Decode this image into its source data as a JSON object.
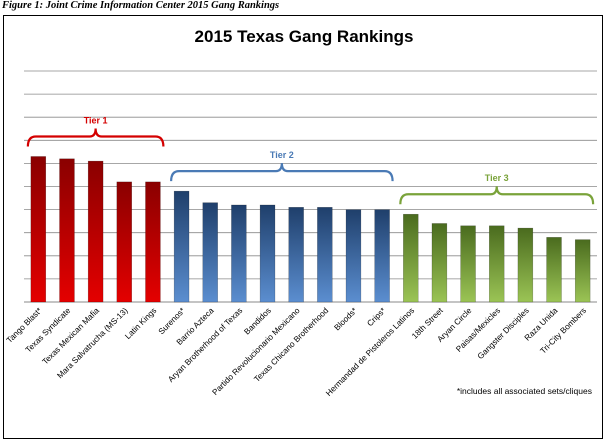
{
  "figure_caption": "Figure 1: Joint Crime Information Center 2015 Gang Rankings",
  "chart_data": {
    "type": "bar",
    "title": "2015 Texas Gang Rankings",
    "xlabel": "",
    "ylabel": "",
    "ylim": [
      0,
      50
    ],
    "grid": true,
    "legend": "none",
    "categories": [
      "Tango Blast*",
      "Texas Syndicate",
      "Texas Mexican Mafia",
      "Mara Salvatrucha (MS-13)",
      "Latin Kings",
      "Surenos*",
      "Barrio Azteca",
      "Aryan Brotherhood  of Texas",
      "Bandidos",
      "Partido Revolucionario Mexicano",
      "Texas Chicano Brotherhood",
      "Bloods*",
      "Crips*",
      "Hermandad de Pistoleros Latinos",
      "18th Street",
      "Aryan Circle",
      "Paisas/Mexicles",
      "Gangster Disciples",
      "Raza Unida",
      "Tri-City Bombers"
    ],
    "values": [
      31.5,
      31,
      30.5,
      26,
      26,
      24,
      21.5,
      21,
      21,
      20.5,
      20.5,
      20,
      20,
      19,
      17,
      16.5,
      16.5,
      16,
      14,
      13.5
    ],
    "tiers": [
      {
        "label": "Tier 1",
        "start": 0,
        "end": 4,
        "color": "#d40000",
        "bar_top": "#8a0000",
        "bar_bottom": "#e40000"
      },
      {
        "label": "Tier 2",
        "start": 5,
        "end": 12,
        "color": "#4a7ab5",
        "bar_top": "#1f3f6b",
        "bar_bottom": "#5b8ed0"
      },
      {
        "label": "Tier 3",
        "start": 13,
        "end": 19,
        "color": "#7aa33a",
        "bar_top": "#4a6b1e",
        "bar_bottom": "#9bc455"
      }
    ],
    "annotation": "*includes all associated sets/cliques"
  }
}
